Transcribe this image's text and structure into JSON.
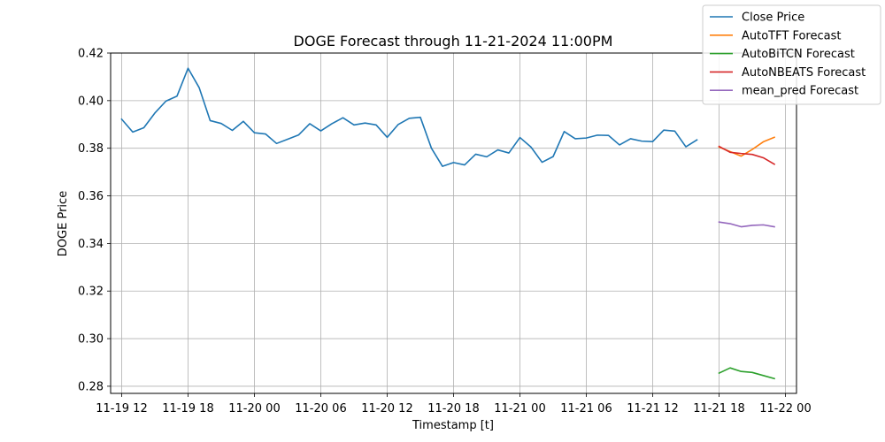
{
  "chart_data": {
    "type": "line",
    "title": "DOGE Forecast through 11-21-2024 11:00PM",
    "xlabel": "Timestamp [t]",
    "ylabel": "DOGE Price",
    "xlim": [
      "2024-11-19 11:00",
      "2024-11-22 01:00"
    ],
    "ylim": [
      0.277,
      0.42
    ],
    "grid": true,
    "legend_position": "top-right",
    "x_ticks": [
      "11-19 12",
      "11-19 18",
      "11-20 00",
      "11-20 06",
      "11-20 12",
      "11-20 18",
      "11-21 00",
      "11-21 06",
      "11-21 12",
      "11-21 18",
      "11-22 00"
    ],
    "x_tick_times": [
      "2024-11-19 12:00",
      "2024-11-19 18:00",
      "2024-11-20 00:00",
      "2024-11-20 06:00",
      "2024-11-20 12:00",
      "2024-11-20 18:00",
      "2024-11-21 00:00",
      "2024-11-21 06:00",
      "2024-11-21 12:00",
      "2024-11-21 18:00",
      "2024-11-22 00:00"
    ],
    "y_ticks": [
      "0.28",
      "0.30",
      "0.32",
      "0.34",
      "0.36",
      "0.38",
      "0.40",
      "0.42"
    ],
    "y_tick_values": [
      0.28,
      0.3,
      0.32,
      0.34,
      0.36,
      0.38,
      0.4,
      0.42
    ],
    "series": [
      {
        "name": "Close Price",
        "color": "#1f77b4",
        "x": [
          "2024-11-19 12:00",
          "2024-11-19 13:00",
          "2024-11-19 14:00",
          "2024-11-19 15:00",
          "2024-11-19 16:00",
          "2024-11-19 17:00",
          "2024-11-19 18:00",
          "2024-11-19 19:00",
          "2024-11-19 20:00",
          "2024-11-19 21:00",
          "2024-11-19 22:00",
          "2024-11-19 23:00",
          "2024-11-20 00:00",
          "2024-11-20 01:00",
          "2024-11-20 02:00",
          "2024-11-20 03:00",
          "2024-11-20 04:00",
          "2024-11-20 05:00",
          "2024-11-20 06:00",
          "2024-11-20 07:00",
          "2024-11-20 08:00",
          "2024-11-20 09:00",
          "2024-11-20 10:00",
          "2024-11-20 11:00",
          "2024-11-20 12:00",
          "2024-11-20 13:00",
          "2024-11-20 14:00",
          "2024-11-20 15:00",
          "2024-11-20 16:00",
          "2024-11-20 17:00",
          "2024-11-20 18:00",
          "2024-11-20 19:00",
          "2024-11-20 20:00",
          "2024-11-20 21:00",
          "2024-11-20 22:00",
          "2024-11-20 23:00",
          "2024-11-21 00:00",
          "2024-11-21 01:00",
          "2024-11-21 02:00",
          "2024-11-21 03:00",
          "2024-11-21 04:00",
          "2024-11-21 05:00",
          "2024-11-21 06:00",
          "2024-11-21 07:00",
          "2024-11-21 08:00",
          "2024-11-21 09:00",
          "2024-11-21 10:00",
          "2024-11-21 11:00",
          "2024-11-21 12:00",
          "2024-11-21 13:00",
          "2024-11-21 14:00",
          "2024-11-21 15:00",
          "2024-11-21 16:00"
        ],
        "y": [
          0.3922,
          0.3868,
          0.3886,
          0.3948,
          0.3998,
          0.4019,
          0.4136,
          0.4055,
          0.3916,
          0.3904,
          0.3875,
          0.3913,
          0.3865,
          0.386,
          0.382,
          0.3838,
          0.3856,
          0.3903,
          0.3873,
          0.3903,
          0.3928,
          0.3898,
          0.3906,
          0.3898,
          0.3846,
          0.39,
          0.3926,
          0.393,
          0.38,
          0.3724,
          0.374,
          0.373,
          0.3775,
          0.3764,
          0.3793,
          0.378,
          0.3845,
          0.3805,
          0.3741,
          0.3765,
          0.387,
          0.384,
          0.3843,
          0.3855,
          0.3854,
          0.3814,
          0.384,
          0.383,
          0.3828,
          0.3876,
          0.3872,
          0.3806,
          0.3835
        ]
      },
      {
        "name": "AutoTFT Forecast",
        "color": "#ff7f0e",
        "x": [
          "2024-11-21 18:00",
          "2024-11-21 19:00",
          "2024-11-21 20:00",
          "2024-11-21 21:00",
          "2024-11-21 22:00",
          "2024-11-21 23:00"
        ],
        "y": [
          0.3805,
          0.3786,
          0.3767,
          0.3795,
          0.3827,
          0.3846
        ]
      },
      {
        "name": "AutoBiTCN Forecast",
        "color": "#2ca02c",
        "x": [
          "2024-11-21 18:00",
          "2024-11-21 19:00",
          "2024-11-21 20:00",
          "2024-11-21 21:00",
          "2024-11-21 22:00",
          "2024-11-21 23:00"
        ],
        "y": [
          0.2855,
          0.2877,
          0.2862,
          0.2858,
          0.2845,
          0.2832
        ]
      },
      {
        "name": "AutoNBEATS Forecast",
        "color": "#d62728",
        "x": [
          "2024-11-21 18:00",
          "2024-11-21 19:00",
          "2024-11-21 20:00",
          "2024-11-21 21:00",
          "2024-11-21 22:00",
          "2024-11-21 23:00"
        ],
        "y": [
          0.3808,
          0.3783,
          0.3778,
          0.3774,
          0.376,
          0.3733
        ]
      },
      {
        "name": "mean_pred Forecast",
        "color": "#9467bd",
        "x": [
          "2024-11-21 18:00",
          "2024-11-21 19:00",
          "2024-11-21 20:00",
          "2024-11-21 21:00",
          "2024-11-21 22:00",
          "2024-11-21 23:00"
        ],
        "y": [
          0.349,
          0.3483,
          0.347,
          0.3476,
          0.3478,
          0.347
        ]
      }
    ]
  }
}
